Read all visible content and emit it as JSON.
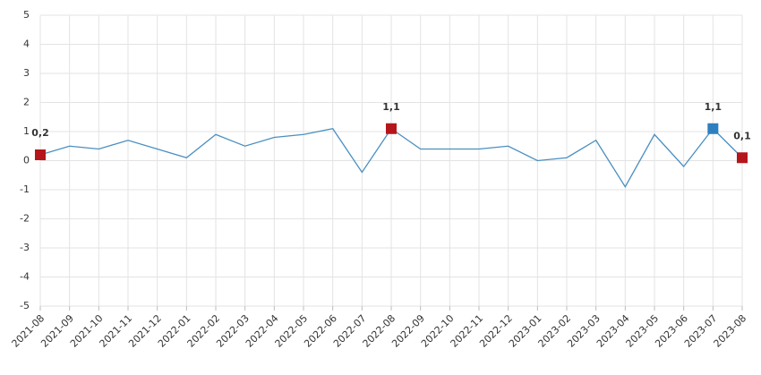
{
  "chart_data": {
    "type": "line",
    "categories": [
      "2021-08",
      "2021-09",
      "2021-10",
      "2021-11",
      "2021-12",
      "2022-01",
      "2022-02",
      "2022-03",
      "2022-04",
      "2022-05",
      "2022-06",
      "2022-07",
      "2022-08",
      "2022-09",
      "2022-10",
      "2022-11",
      "2022-12",
      "2023-01",
      "2023-02",
      "2023-03",
      "2023-04",
      "2023-05",
      "2023-06",
      "2023-07",
      "2023-08"
    ],
    "series": [
      {
        "color": "#4a8fc0",
        "values": [
          0.2,
          0.5,
          0.4,
          0.7,
          0.4,
          0.1,
          0.9,
          0.5,
          0.8,
          0.9,
          1.1,
          -0.4,
          1.1,
          0.4,
          0.4,
          0.4,
          0.5,
          0.0,
          0.1,
          0.7,
          -0.9,
          0.9,
          -0.2,
          1.1,
          0.1
        ],
        "value_labels": [
          "0,2",
          null,
          null,
          null,
          null,
          null,
          null,
          null,
          null,
          null,
          null,
          null,
          "1,1",
          null,
          null,
          null,
          null,
          null,
          null,
          null,
          null,
          null,
          null,
          "1,1",
          "0,1"
        ],
        "marker_colors": [
          "#b5161c",
          null,
          null,
          null,
          null,
          null,
          null,
          null,
          null,
          null,
          null,
          null,
          "#b5161c",
          null,
          null,
          null,
          null,
          null,
          null,
          null,
          null,
          null,
          null,
          "#2e7fbf",
          "#b5161c"
        ]
      }
    ],
    "ylim": [
      -5,
      5
    ],
    "yticks": [
      5,
      4,
      3,
      2,
      1,
      0,
      -1,
      -2,
      -3,
      -4,
      -5
    ],
    "grid": true
  }
}
